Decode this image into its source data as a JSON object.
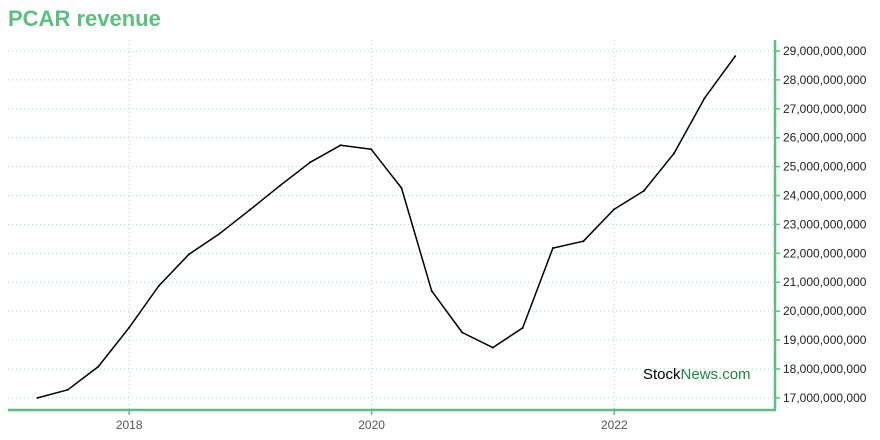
{
  "chart_data": {
    "type": "line",
    "title": "PCAR revenue",
    "xlabel": "",
    "ylabel": "",
    "x_tick_labels": [
      "2018",
      "2020",
      "2022"
    ],
    "y_tick_labels": [
      "17,000,000,000",
      "18,000,000,000",
      "19,000,000,000",
      "20,000,000,000",
      "21,000,000,000",
      "22,000,000,000",
      "23,000,000,000",
      "24,000,000,000",
      "25,000,000,000",
      "26,000,000,000",
      "27,000,000,000",
      "28,000,000,000",
      "29,000,000,000"
    ],
    "ylim": [
      16580000000,
      29380000000
    ],
    "xlim": [
      "2017-01-01",
      "2023-04-30"
    ],
    "grid": true,
    "series": [
      {
        "color": "#000000",
        "points": [
          [
            "2017-03-31",
            17000000000
          ],
          [
            "2017-06-30",
            17280000000
          ],
          [
            "2017-09-30",
            18080000000
          ],
          [
            "2017-12-31",
            19420000000
          ],
          [
            "2018-03-31",
            20870000000
          ],
          [
            "2018-06-30",
            21970000000
          ],
          [
            "2018-09-30",
            22680000000
          ],
          [
            "2018-12-31",
            23510000000
          ],
          [
            "2019-03-31",
            24340000000
          ],
          [
            "2019-06-30",
            25150000000
          ],
          [
            "2019-09-30",
            25740000000
          ],
          [
            "2019-12-31",
            25600000000
          ],
          [
            "2020-03-31",
            24260000000
          ],
          [
            "2020-06-30",
            20700000000
          ],
          [
            "2020-09-30",
            19260000000
          ],
          [
            "2020-12-31",
            18740000000
          ],
          [
            "2021-03-31",
            19420000000
          ],
          [
            "2021-06-30",
            22180000000
          ],
          [
            "2021-09-30",
            22420000000
          ],
          [
            "2021-12-31",
            23520000000
          ],
          [
            "2022-03-31",
            24160000000
          ],
          [
            "2022-06-30",
            25460000000
          ],
          [
            "2022-09-30",
            27370000000
          ],
          [
            "2022-12-31",
            28820000000
          ]
        ]
      }
    ]
  },
  "watermark": {
    "part1": "Stock",
    "part2": "News",
    "part3": ".com",
    "color1": "#000000",
    "color2": "#1a8a3a"
  },
  "colors": {
    "accent": "#5cbf80",
    "grid": "#a9dcc0"
  }
}
